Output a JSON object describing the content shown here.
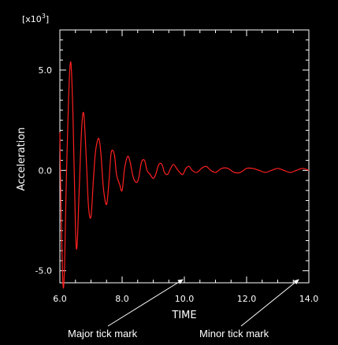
{
  "chart_data": {
    "type": "line",
    "title": "",
    "xlabel": "TIME",
    "ylabel": "Acceleration",
    "y_scale_prefix": "[x10",
    "y_scale_exponent": "3",
    "y_scale_suffix": "]",
    "xlim": [
      6.0,
      14.0
    ],
    "ylim": [
      -5.6,
      7.0
    ],
    "x_major_ticks": [
      6.0,
      8.0,
      10.0,
      12.0,
      14.0
    ],
    "x_tick_labels": [
      "6.0",
      "8.0",
      "10.0",
      "12.0",
      "14.0"
    ],
    "x_minor_ticks": [
      6.5,
      7.0,
      7.5,
      8.5,
      9.0,
      9.5,
      10.5,
      11.0,
      11.5,
      12.5,
      13.0,
      13.5
    ],
    "y_major_ticks": [
      -5.0,
      0.0,
      5.0
    ],
    "y_tick_labels": [
      "-5.0",
      "0.0",
      "5.0"
    ],
    "y_minor_ticks": [
      -4.5,
      -4.0,
      -3.5,
      -3.0,
      -2.5,
      -2.0,
      -1.5,
      -1.0,
      -0.5,
      0.5,
      1.0,
      1.5,
      2.0,
      2.5,
      3.0,
      3.5,
      4.0,
      4.5,
      5.5,
      6.0,
      6.5
    ],
    "grid": false,
    "legend": "none",
    "colors": {
      "background": "#000000",
      "axes": "#ffffff",
      "line": "#ff2020",
      "text": "#ffffff"
    },
    "series": [
      {
        "color": "#ff2020",
        "x": [
          6.0,
          6.04,
          6.1,
          6.15,
          6.2,
          6.28,
          6.35,
          6.42,
          6.5,
          6.55,
          6.62,
          6.7,
          6.77,
          6.85,
          6.92,
          7.0,
          7.08,
          7.15,
          7.25,
          7.32,
          7.4,
          7.5,
          7.58,
          7.65,
          7.75,
          7.82,
          7.92,
          8.0,
          8.08,
          8.18,
          8.26,
          8.35,
          8.45,
          8.53,
          8.62,
          8.72,
          8.8,
          8.9,
          9.0,
          9.08,
          9.18,
          9.28,
          9.36,
          9.46,
          9.56,
          9.65,
          9.75,
          9.85,
          9.95,
          10.05,
          10.15,
          10.25,
          10.4,
          10.55,
          10.7,
          10.85,
          11.0,
          11.2,
          11.4,
          11.6,
          11.8,
          12.0,
          12.2,
          12.4,
          12.6,
          12.8,
          13.0,
          13.2,
          13.4,
          13.6,
          13.8,
          14.0
        ],
        "y": [
          1.9,
          -2.0,
          -5.7,
          -4.8,
          -1.0,
          3.6,
          5.4,
          2.8,
          -2.8,
          -3.8,
          -1.0,
          2.1,
          2.8,
          0.5,
          -1.8,
          -2.3,
          -0.4,
          1.0,
          1.6,
          0.8,
          -0.9,
          -1.7,
          -0.5,
          0.9,
          0.8,
          -0.2,
          -0.7,
          -1.0,
          0.1,
          0.7,
          0.4,
          -0.3,
          -0.6,
          -0.4,
          0.4,
          0.5,
          0.0,
          -0.2,
          -0.4,
          -0.2,
          0.3,
          0.3,
          -0.1,
          -0.2,
          0.1,
          0.3,
          0.1,
          -0.1,
          -0.2,
          0.1,
          0.2,
          0.0,
          -0.1,
          0.1,
          0.2,
          0.0,
          -0.1,
          0.1,
          0.1,
          -0.1,
          -0.1,
          0.1,
          0.1,
          0.0,
          -0.1,
          0.0,
          0.1,
          0.0,
          -0.1,
          0.0,
          0.1,
          0.0
        ]
      }
    ]
  },
  "annotations": {
    "major": "Major tick mark",
    "minor": "Minor tick mark"
  }
}
